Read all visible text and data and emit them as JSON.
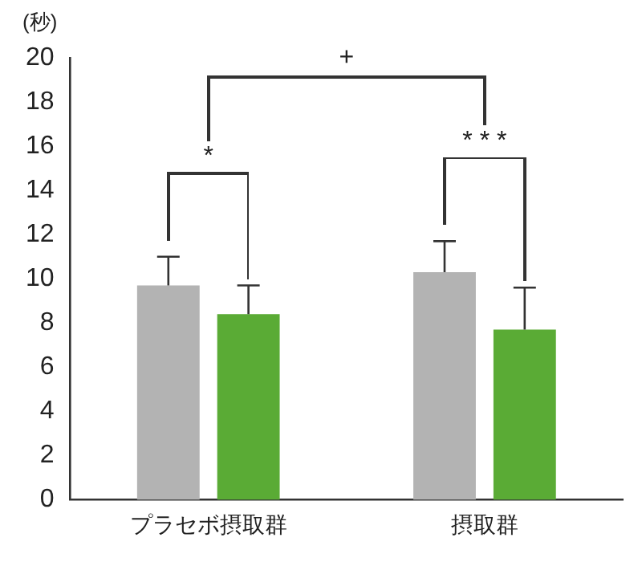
{
  "chart_data": {
    "type": "bar",
    "ylabel": "(秒)",
    "categories": [
      "プラセボ摂取群",
      "摂取群"
    ],
    "series": [
      {
        "color": "#b3b3b3",
        "values": [
          9.7,
          10.3
        ],
        "errors": [
          [
            9.7,
            11.0
          ],
          [
            10.3,
            11.7
          ]
        ]
      },
      {
        "color": "#5aab35",
        "values": [
          8.4,
          7.7
        ],
        "errors": [
          [
            8.4,
            9.7
          ],
          [
            7.7,
            9.6
          ]
        ]
      }
    ],
    "ylim": [
      0,
      20
    ],
    "yticks": [
      0,
      2,
      4,
      6,
      8,
      10,
      12,
      14,
      16,
      18,
      20
    ],
    "grid": false,
    "legend": false,
    "annotations": [
      "*",
      "* * *",
      "+"
    ]
  }
}
